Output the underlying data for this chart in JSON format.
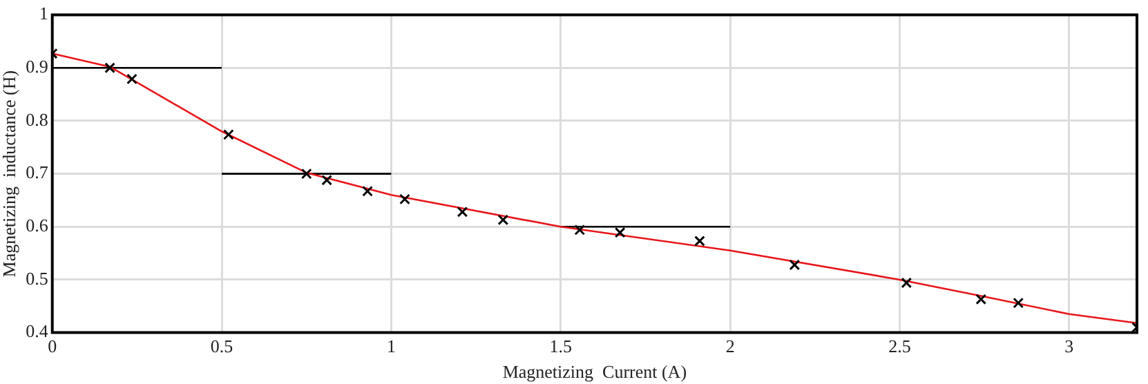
{
  "chart_data": {
    "type": "scatter",
    "xlabel": "Magnetizing  Current (A)",
    "ylabel": "Magnetizing  inductance (H)",
    "xlim": [
      0,
      3.2
    ],
    "xticks": [
      0,
      0.5,
      1,
      1.5,
      2,
      2.5,
      3
    ],
    "ylim": [
      0.4,
      1
    ],
    "yticks": [
      0.4,
      0.5,
      0.6,
      0.7,
      0.8,
      0.9,
      1
    ],
    "grid": true,
    "legend": false,
    "series": [
      {
        "type": "line",
        "color": "#e8161b",
        "marker": "none",
        "x": [
          0,
          0.17,
          0.5,
          0.75,
          1,
          1.5,
          2,
          2.5,
          2.75,
          3,
          3.2
        ],
        "values": [
          0.927,
          0.902,
          0.78,
          0.702,
          0.66,
          0.6,
          0.555,
          0.5,
          0.468,
          0.435,
          0.418
        ]
      },
      {
        "type": "line",
        "color": "#000000",
        "marker": "none",
        "x": [
          0,
          0.5
        ],
        "values": [
          0.9,
          0.9
        ]
      },
      {
        "type": "line",
        "color": "#000000",
        "marker": "none",
        "x": [
          0.5,
          1
        ],
        "values": [
          0.7,
          0.7
        ]
      },
      {
        "type": "line",
        "color": "#000000",
        "marker": "none",
        "x": [
          1.5,
          2
        ],
        "values": [
          0.6,
          0.6
        ]
      },
      {
        "color": "#000000",
        "marker": "cross",
        "x": [
          0,
          0.17,
          0.235,
          0.52,
          0.75,
          0.81,
          0.93,
          1.04,
          1.21,
          1.33,
          1.556,
          1.675,
          1.91,
          2.19,
          2.52,
          2.74,
          2.85,
          3.2
        ],
        "values": [
          0.927,
          0.9,
          0.879,
          0.774,
          0.7,
          0.688,
          0.667,
          0.652,
          0.628,
          0.613,
          0.594,
          0.589,
          0.573,
          0.528,
          0.494,
          0.463,
          0.456,
          0.41
        ]
      }
    ]
  }
}
